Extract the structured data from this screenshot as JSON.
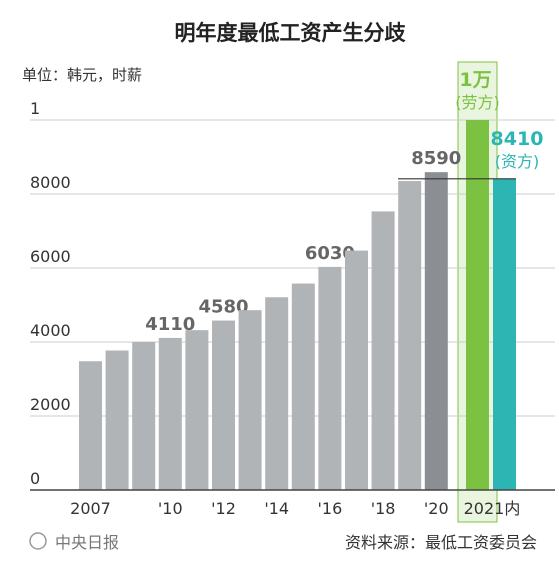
{
  "chart_data": {
    "type": "bar",
    "title": "明年度最低工资产生分歧",
    "unit": "单位：韩元，时薪",
    "categories": [
      "2007",
      null,
      null,
      "'10",
      null,
      "'12",
      null,
      "'14",
      null,
      "'16",
      null,
      "'18",
      null,
      "'20"
    ],
    "values": [
      3480,
      3770,
      4000,
      4110,
      4320,
      4580,
      4860,
      5210,
      5580,
      6030,
      6470,
      7530,
      8350,
      8590
    ],
    "value_labels": [
      null,
      null,
      null,
      "4110",
      null,
      "4580",
      null,
      null,
      null,
      "6030",
      null,
      null,
      null,
      "8590"
    ],
    "color": "#b1b4b7",
    "last_color": "#8b8f93",
    "proposal_category": "2021内",
    "proposals": [
      {
        "name": "(劳方)",
        "label": "1万",
        "value": 10000,
        "color": "#7cc242"
      },
      {
        "name": "(资方)",
        "value": 8410,
        "color": "#2cb5b2"
      }
    ],
    "ylim": [
      0,
      10000
    ],
    "yticks": [
      0,
      2000,
      4000,
      6000,
      8000,
      {
        "value": 10000,
        "label": "1"
      }
    ],
    "grid": true,
    "source_brand": "中央日报",
    "source": "资料来源：最低工资委员会"
  }
}
